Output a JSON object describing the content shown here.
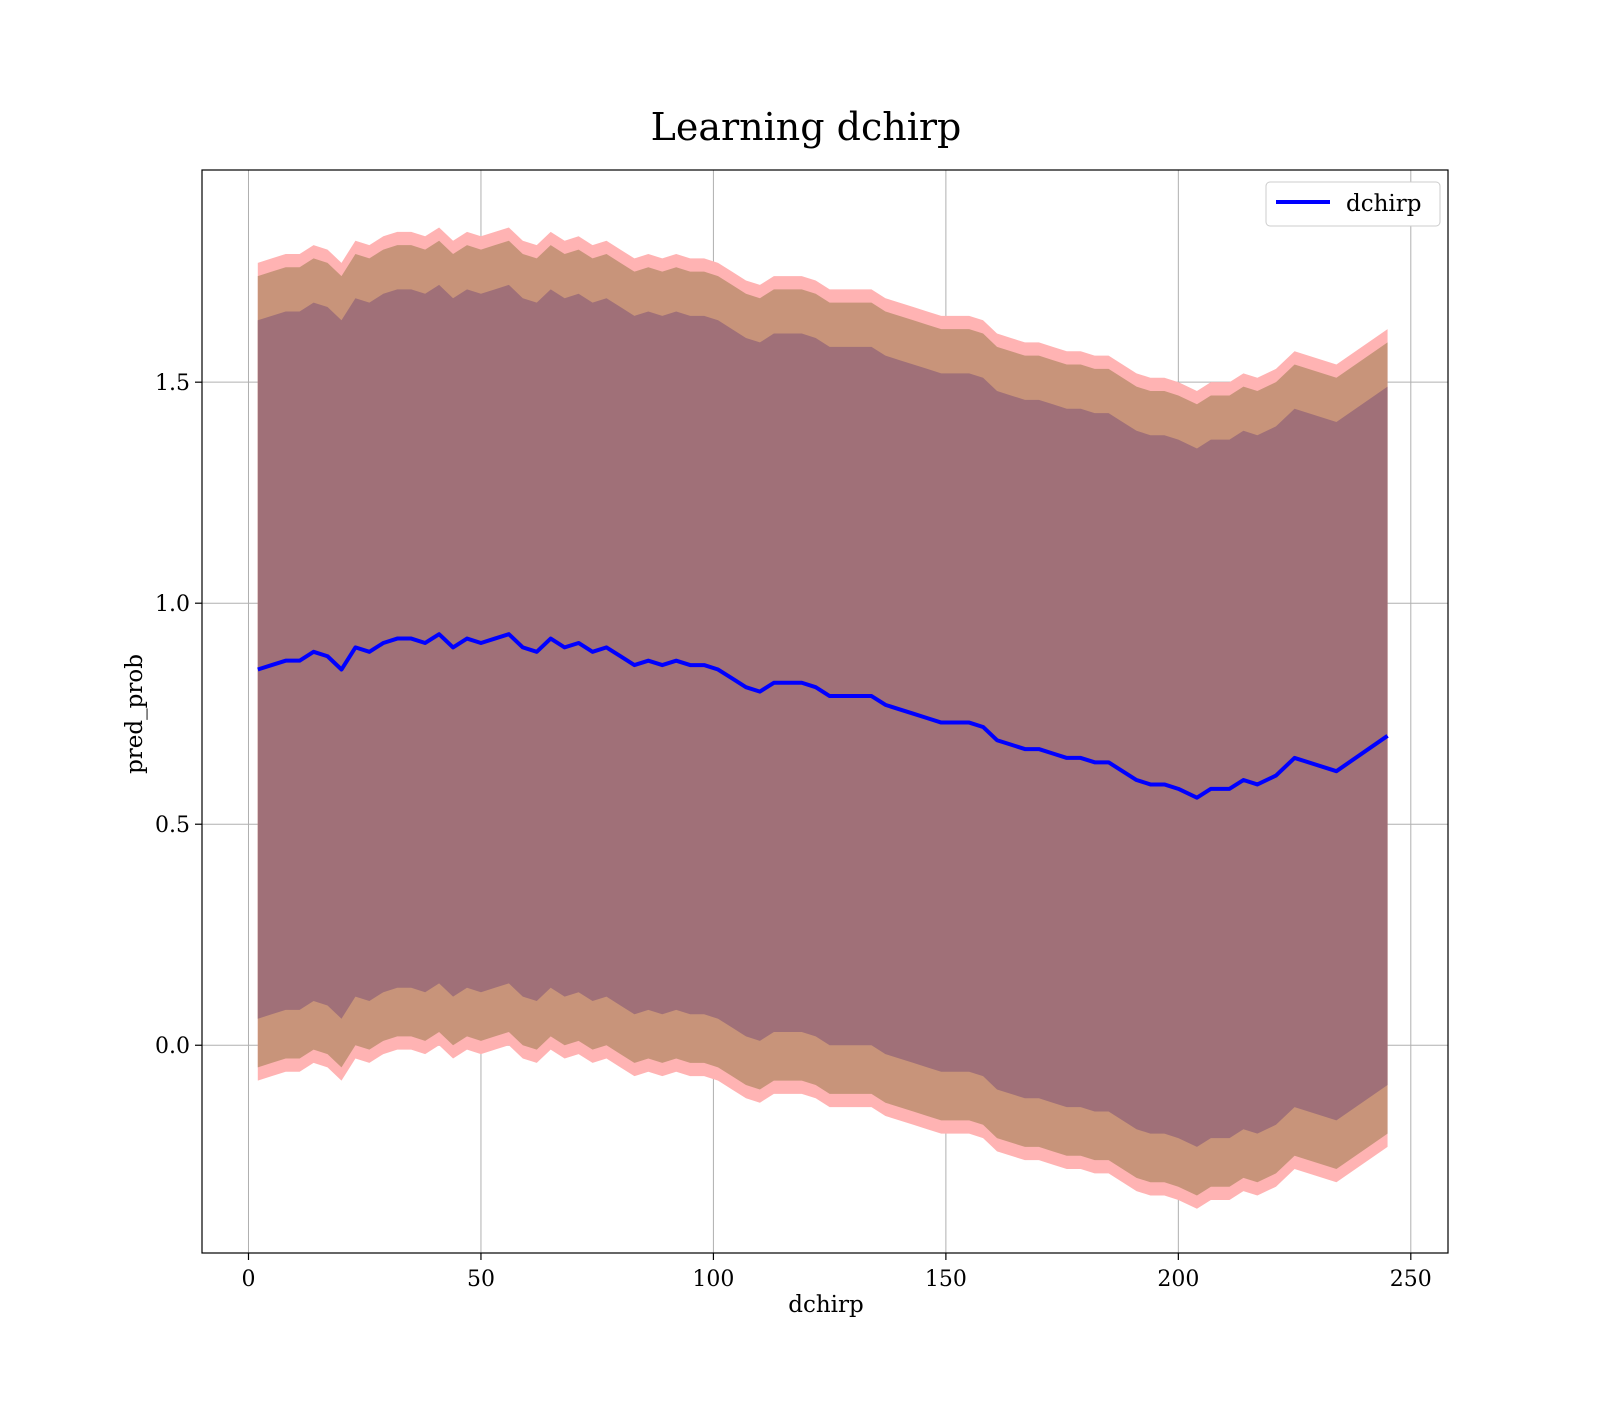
{
  "chart_data": {
    "type": "line",
    "title": "Learning dchirp",
    "xlabel": "dchirp",
    "ylabel": "pred_prob",
    "xlim": [
      -10,
      258
    ],
    "ylim": [
      -0.47,
      1.98
    ],
    "xticks": [
      0,
      50,
      100,
      150,
      200,
      250
    ],
    "xtick_labels": [
      "0",
      "50",
      "100",
      "150",
      "200",
      "250"
    ],
    "yticks": [
      0.0,
      0.5,
      1.0,
      1.5
    ],
    "ytick_labels": [
      "0.0",
      "0.5",
      "1.0",
      "1.5"
    ],
    "grid": true,
    "legend": {
      "placement": "top-right",
      "entries": [
        "dchirp"
      ]
    },
    "line_color": "#0000ff",
    "band_colors": {
      "outer": "#ffb3b3",
      "middle": "#c8947a",
      "inner": "#a07078"
    },
    "x": [
      2,
      5,
      8,
      11,
      14,
      17,
      20,
      23,
      26,
      29,
      32,
      35,
      38,
      41,
      44,
      47,
      50,
      53,
      56,
      59,
      62,
      65,
      68,
      71,
      74,
      77,
      80,
      83,
      86,
      89,
      92,
      95,
      98,
      101,
      104,
      107,
      110,
      113,
      116,
      119,
      122,
      125,
      128,
      131,
      134,
      137,
      140,
      143,
      146,
      149,
      152,
      155,
      158,
      161,
      164,
      167,
      170,
      173,
      176,
      179,
      182,
      185,
      188,
      191,
      194,
      197,
      200,
      204,
      207,
      211,
      214,
      217,
      221,
      225,
      234,
      245
    ],
    "series": [
      {
        "name": "dchirp",
        "values": [
          0.85,
          0.86,
          0.87,
          0.87,
          0.89,
          0.88,
          0.85,
          0.9,
          0.89,
          0.91,
          0.92,
          0.92,
          0.91,
          0.93,
          0.9,
          0.92,
          0.91,
          0.92,
          0.93,
          0.9,
          0.89,
          0.92,
          0.9,
          0.91,
          0.89,
          0.9,
          0.88,
          0.86,
          0.87,
          0.86,
          0.87,
          0.86,
          0.86,
          0.85,
          0.83,
          0.81,
          0.8,
          0.82,
          0.82,
          0.82,
          0.81,
          0.79,
          0.79,
          0.79,
          0.79,
          0.77,
          0.76,
          0.75,
          0.74,
          0.73,
          0.73,
          0.73,
          0.72,
          0.69,
          0.68,
          0.67,
          0.67,
          0.66,
          0.65,
          0.65,
          0.64,
          0.64,
          0.62,
          0.6,
          0.59,
          0.59,
          0.58,
          0.56,
          0.58,
          0.58,
          0.6,
          0.59,
          0.61,
          0.65,
          0.62,
          0.7
        ]
      }
    ],
    "bands": [
      {
        "level": "outer",
        "upper_offset": 0.92,
        "lower_offset": -0.93
      },
      {
        "level": "middle",
        "upper_offset": 0.89,
        "lower_offset": -0.9
      },
      {
        "level": "inner",
        "upper_offset": 0.79,
        "lower_offset": -0.79
      }
    ]
  }
}
